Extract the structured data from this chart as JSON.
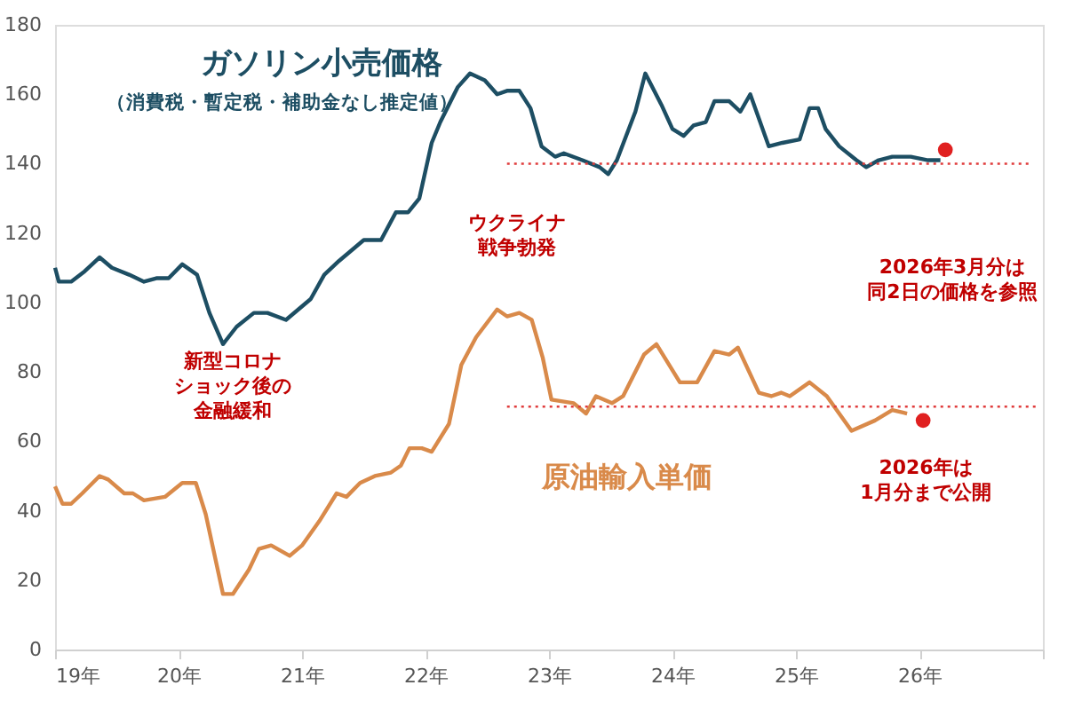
{
  "chart_data": {
    "type": "line",
    "xlim": [
      19,
      27
    ],
    "ylim": [
      0,
      180
    ],
    "xticks": [
      {
        "value": 19,
        "label": "19年"
      },
      {
        "value": 20,
        "label": "20年"
      },
      {
        "value": 21,
        "label": "21年"
      },
      {
        "value": 22,
        "label": "22年"
      },
      {
        "value": 23,
        "label": "23年"
      },
      {
        "value": 24,
        "label": "24年"
      },
      {
        "value": 25,
        "label": "25年"
      },
      {
        "value": 26,
        "label": "26年"
      },
      {
        "value": 27,
        "label": null
      }
    ],
    "yticks": [
      0,
      20,
      40,
      60,
      80,
      100,
      120,
      140,
      160,
      180
    ],
    "grid": false,
    "legend": false,
    "line_style": "solid",
    "marker": "none",
    "series": [
      {
        "name": "ガソリン小売価格",
        "color": "#1d4e63",
        "x": [
          19.0,
          19.03,
          19.13,
          19.24,
          19.36,
          19.46,
          19.6,
          19.72,
          19.82,
          19.92,
          20.03,
          20.15,
          20.25,
          20.36,
          20.47,
          20.61,
          20.72,
          20.87,
          20.97,
          21.07,
          21.18,
          21.3,
          21.4,
          21.5,
          21.64,
          21.76,
          21.86,
          21.95,
          22.05,
          22.12,
          22.26,
          22.36,
          22.48,
          22.58,
          22.66,
          22.76,
          22.85,
          22.94,
          23.05,
          23.12,
          23.27,
          23.41,
          23.48,
          23.55,
          23.7,
          23.78,
          23.91,
          24.0,
          24.09,
          24.17,
          24.27,
          24.34,
          24.46,
          24.55,
          24.63,
          24.78,
          24.89,
          25.03,
          25.11,
          25.18,
          25.24,
          25.35,
          25.49,
          25.57,
          25.67,
          25.78,
          25.93,
          26.07,
          26.17
        ],
        "values": [
          110,
          106,
          106,
          109,
          113,
          110,
          108,
          106,
          107,
          107,
          111,
          108,
          97,
          88,
          93,
          97,
          97,
          95,
          98,
          101,
          108,
          112,
          115,
          118,
          118,
          126,
          126,
          130,
          146,
          152,
          162,
          166,
          164,
          160,
          161,
          161,
          156,
          145,
          142,
          143,
          141,
          139,
          137,
          141,
          155,
          166,
          157,
          150,
          148,
          151,
          152,
          158,
          158,
          155,
          160,
          145,
          146,
          147,
          156,
          156,
          150,
          145,
          141,
          139,
          141,
          142,
          142,
          141,
          141
        ]
      },
      {
        "name": "原油輸入単価",
        "color": "#d98a4a",
        "x": [
          19.0,
          19.06,
          19.13,
          19.22,
          19.36,
          19.43,
          19.56,
          19.63,
          19.72,
          19.89,
          20.03,
          20.14,
          20.22,
          20.36,
          20.44,
          20.57,
          20.65,
          20.75,
          20.9,
          21.0,
          21.14,
          21.28,
          21.36,
          21.47,
          21.59,
          21.72,
          21.8,
          21.87,
          21.97,
          22.05,
          22.19,
          22.29,
          22.41,
          22.58,
          22.66,
          22.76,
          22.86,
          22.95,
          23.02,
          23.2,
          23.3,
          23.38,
          23.51,
          23.6,
          23.77,
          23.87,
          24.06,
          24.2,
          24.34,
          24.46,
          24.53,
          24.7,
          24.8,
          24.88,
          24.95,
          25.11,
          25.25,
          25.45,
          25.64,
          25.78,
          25.9
        ],
        "values": [
          47,
          42,
          42,
          45,
          50,
          49,
          45,
          45,
          43,
          44,
          48,
          48,
          39,
          16,
          16,
          23,
          29,
          30,
          27,
          30,
          37,
          45,
          44,
          48,
          50,
          51,
          53,
          58,
          58,
          57,
          65,
          82,
          90,
          98,
          96,
          97,
          95,
          84,
          72,
          71,
          68,
          73,
          71,
          73,
          85,
          88,
          77,
          77,
          86,
          85,
          87,
          74,
          73,
          74,
          73,
          77,
          73,
          63,
          66,
          69,
          68
        ]
      },
      {
        "type": "line",
        "color": "#e03c3c",
        "line_style": "dotted",
        "x": [
          22.66,
          26.89
        ],
        "values": [
          140,
          140
        ]
      },
      {
        "type": "line",
        "color": "#e03c3c",
        "line_style": "dotted",
        "x": [
          22.66,
          26.95
        ],
        "values": [
          70,
          70
        ]
      },
      {
        "type": "scatter",
        "marker": "circle",
        "color": "#e02020",
        "x": [
          26.21
        ],
        "values": [
          144
        ]
      },
      {
        "type": "scatter",
        "marker": "circle",
        "color": "#e02020",
        "x": [
          26.03
        ],
        "values": [
          66
        ]
      }
    ],
    "annotations": [
      "（消費税・暫定税・補助金なし推定値）",
      "新型コロナショック後の金融緩和",
      "ウクライナ戦争勃発",
      "2026年3月分は同2日の価格を参照",
      "2026年は1月分まで公開"
    ]
  }
}
